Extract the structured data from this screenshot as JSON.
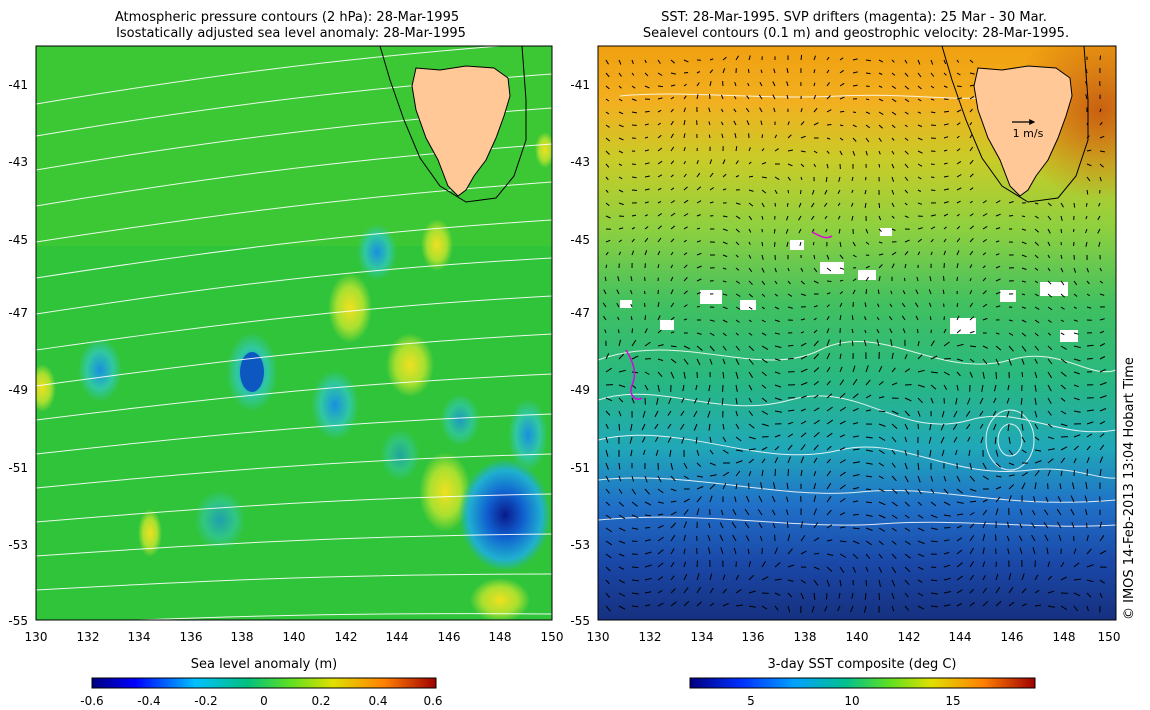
{
  "left_panel": {
    "title_line1": "Atmospheric pressure contours (2 hPa): 28-Mar-1995",
    "title_line2": "Isostatically adjusted sea level anomaly: 28-Mar-1995",
    "colorbar_label": "Sea level anomaly (m)",
    "colorbar_ticks": [
      "-0.6",
      "-0.4",
      "-0.2",
      "0",
      "0.2",
      "0.4",
      "0.6"
    ],
    "colorbar_range": [
      -0.6,
      0.6
    ]
  },
  "right_panel": {
    "title_line1": "SST: 28-Mar-1995. SVP drifters (magenta): 25 Mar - 30 Mar.",
    "title_line2": "Sealevel contours (0.1 m) and geostrophic velocity: 28-Mar-1995.",
    "colorbar_label": "3-day SST composite (deg C)",
    "colorbar_ticks": [
      "5",
      "10",
      "15"
    ],
    "colorbar_range": [
      2,
      19
    ],
    "velocity_scale_label": "1 m/s"
  },
  "axes": {
    "lon_range": [
      130,
      150
    ],
    "lat_range": [
      -55,
      -40.2
    ],
    "x_ticks": [
      "130",
      "132",
      "134",
      "136",
      "138",
      "140",
      "142",
      "144",
      "146",
      "148",
      "150"
    ],
    "y_ticks": [
      "-41",
      "-43",
      "-45",
      "-47",
      "-49",
      "-51",
      "-53",
      "-55"
    ]
  },
  "credit": "© IMOS 14-Feb-2013 13:04 Hobart Time",
  "colors": {
    "land": "#ffc896",
    "sst_cold": "#1a3a9a",
    "sst_mid": "#2ab878",
    "sst_warm": "#f09010",
    "sla_background": "#2fc43a",
    "contour": "#ffffff"
  }
}
